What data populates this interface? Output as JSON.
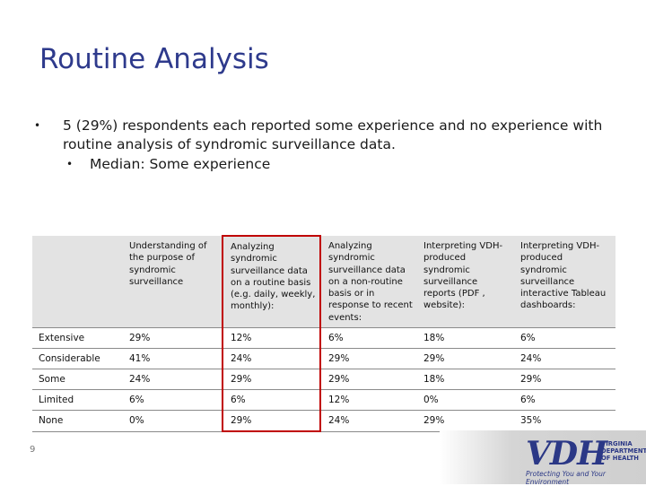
{
  "slide": {
    "title": "Routine Analysis",
    "bullet_1": "5 (29%) respondents each reported some experience and no experience with routine analysis of syndromic surveillance data.",
    "bullet_2": "Median: Some experience",
    "page_number": "9"
  },
  "table": {
    "headers": [
      "",
      "Understanding of the purpose of syndromic surveillance",
      "Analyzing syndromic surveillance data on a routine basis (e.g. daily, weekly, monthly):",
      "Analyzing syndromic surveillance data on a non-routine basis or in response to recent events:",
      "Interpreting VDH-produced syndromic surveillance reports (PDF , website):",
      "Interpreting VDH-produced syndromic surveillance interactive Tableau dashboards:"
    ],
    "rows": [
      {
        "label": "Extensive",
        "values": [
          "29%",
          "12%",
          "6%",
          "18%",
          "6%"
        ]
      },
      {
        "label": "Considerable",
        "values": [
          "41%",
          "24%",
          "29%",
          "29%",
          "24%"
        ]
      },
      {
        "label": "Some",
        "values": [
          "24%",
          "29%",
          "29%",
          "18%",
          "29%"
        ]
      },
      {
        "label": "Limited",
        "values": [
          "6%",
          "6%",
          "12%",
          "0%",
          "6%"
        ]
      },
      {
        "label": "None",
        "values": [
          "0%",
          "29%",
          "24%",
          "29%",
          "35%"
        ]
      }
    ],
    "highlight_color": "#c00000"
  },
  "logo": {
    "mark": "VDH",
    "name": "VIRGINIA DEPARTMENT OF HEALTH",
    "tagline": "Protecting You and Your Environment"
  },
  "colors": {
    "title": "#2e3a8c",
    "header_bg": "#e3e3e3",
    "logo": "#2b3886"
  }
}
